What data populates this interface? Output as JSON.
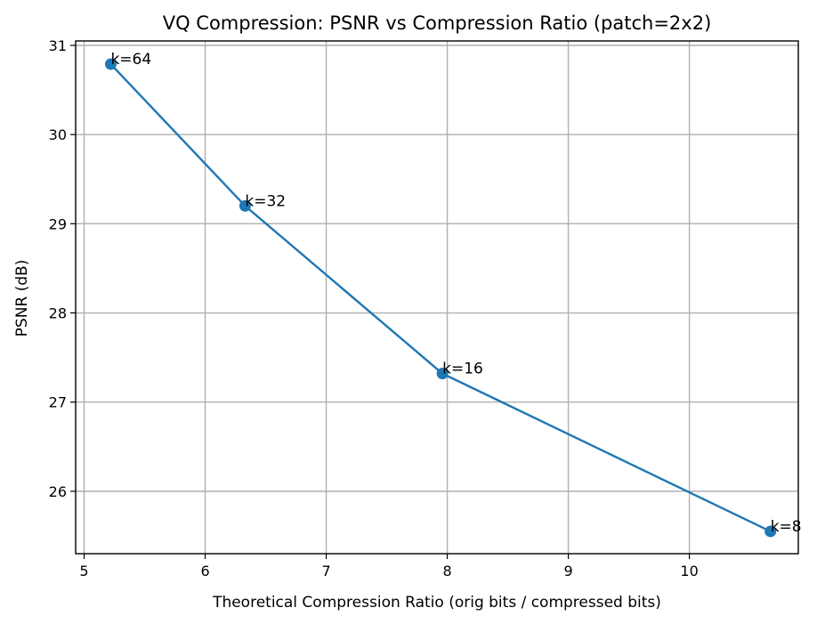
{
  "chart_data": {
    "type": "line",
    "title": "VQ Compression: PSNR vs Compression Ratio (patch=2x2)",
    "xlabel": "Theoretical Compression Ratio (orig bits / compressed bits)",
    "ylabel": "PSNR (dB)",
    "xlim": [
      4.93,
      10.9
    ],
    "ylim": [
      25.3,
      31.05
    ],
    "xticks": [
      5,
      6,
      7,
      8,
      9,
      10
    ],
    "yticks": [
      26,
      27,
      28,
      29,
      30,
      31
    ],
    "grid": true,
    "series": [
      {
        "color": "#1f77b4",
        "points": [
          {
            "x": 5.22,
            "y": 30.79,
            "label": "k=64"
          },
          {
            "x": 6.33,
            "y": 29.2,
            "label": "k=32"
          },
          {
            "x": 7.96,
            "y": 27.32,
            "label": "k=16"
          },
          {
            "x": 10.67,
            "y": 25.55,
            "label": "k=8"
          }
        ]
      }
    ]
  }
}
